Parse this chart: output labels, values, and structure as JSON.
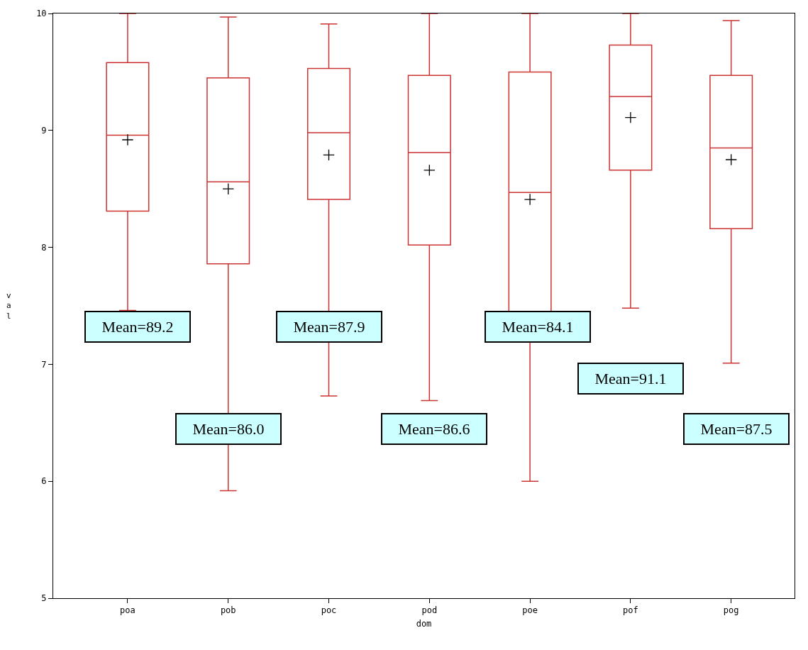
{
  "chart_data": {
    "type": "box",
    "xlabel": "dom",
    "ylabel": "val",
    "categories": [
      "poa",
      "pob",
      "poc",
      "pod",
      "poe",
      "pof",
      "pog"
    ],
    "color": "#cc3333",
    "ylim": [
      5,
      10
    ],
    "yticks": [
      5,
      6,
      7,
      8,
      9,
      10
    ],
    "boxes": [
      {
        "low": 7.46,
        "q1": 8.31,
        "median": 8.96,
        "q3": 9.58,
        "high": 10.0,
        "mean": 8.92
      },
      {
        "low": 5.92,
        "q1": 7.86,
        "median": 8.56,
        "q3": 9.45,
        "high": 9.97,
        "mean": 8.5
      },
      {
        "low": 6.73,
        "q1": 8.41,
        "median": 8.98,
        "q3": 9.53,
        "high": 9.91,
        "mean": 8.79
      },
      {
        "low": 6.69,
        "q1": 8.02,
        "median": 8.81,
        "q3": 9.47,
        "high": 10.0,
        "mean": 8.66
      },
      {
        "low": 6.0,
        "q1": 7.3,
        "median": 8.47,
        "q3": 9.5,
        "high": 10.0,
        "mean": 8.41
      },
      {
        "low": 7.48,
        "q1": 8.66,
        "median": 9.29,
        "q3": 9.73,
        "high": 10.0,
        "mean": 9.11
      },
      {
        "low": 7.01,
        "q1": 8.16,
        "median": 8.85,
        "q3": 9.47,
        "high": 9.94,
        "mean": 8.75
      }
    ],
    "annotations": [
      "Mean=89.2",
      "Mean=86.0",
      "Mean=87.9",
      "Mean=86.6",
      "Mean=84.1",
      "Mean=91.1",
      "Mean=87.5"
    ]
  }
}
